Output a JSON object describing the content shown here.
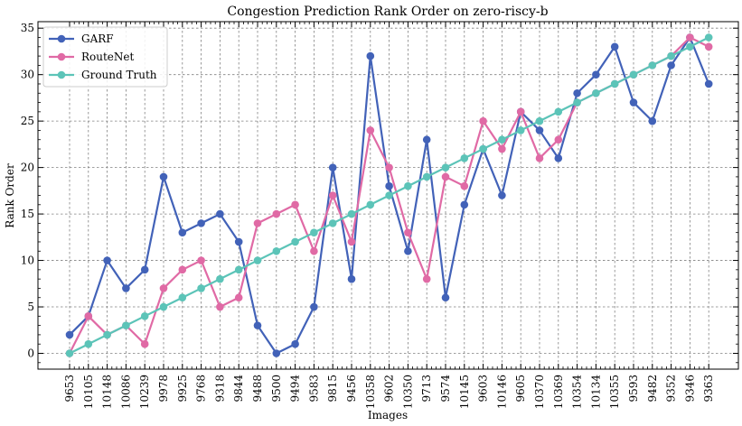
{
  "chart_data": {
    "type": "line",
    "title": "Congestion Prediction Rank Order on zero-riscy-b",
    "xlabel": "Images",
    "ylabel": "Rank Order",
    "ylim": [
      -1.7,
      35.7
    ],
    "yticks": [
      0,
      5,
      10,
      15,
      20,
      25,
      30,
      35
    ],
    "grid": true,
    "legend_position": "top-left",
    "categories": [
      "9653",
      "10105",
      "10148",
      "10086",
      "10239",
      "9978",
      "9925",
      "9768",
      "9318",
      "9844",
      "9488",
      "9500",
      "9494",
      "9583",
      "9815",
      "9456",
      "10358",
      "9602",
      "10350",
      "9713",
      "9574",
      "10145",
      "9603",
      "10146",
      "9605",
      "10370",
      "10369",
      "10354",
      "10134",
      "10355",
      "9593",
      "9482",
      "9352",
      "9346",
      "9363"
    ],
    "series": [
      {
        "name": "GARF",
        "color": "#4262b8",
        "values": [
          2,
          4,
          10,
          7,
          9,
          19,
          13,
          14,
          15,
          12,
          3,
          0,
          1,
          5,
          20,
          8,
          32,
          18,
          11,
          23,
          6,
          16,
          22,
          17,
          26,
          24,
          21,
          28,
          30,
          33,
          27,
          25,
          31,
          34,
          29
        ]
      },
      {
        "name": "RouteNet",
        "color": "#e06aa5",
        "values": [
          0,
          4,
          2,
          3,
          1,
          7,
          9,
          10,
          5,
          6,
          14,
          15,
          16,
          11,
          17,
          12,
          24,
          20,
          13,
          8,
          19,
          18,
          25,
          22,
          26,
          21,
          23,
          27,
          28,
          29,
          30,
          31,
          32,
          34,
          33
        ]
      },
      {
        "name": "Ground Truth",
        "color": "#5cc4b8",
        "values": [
          0,
          1,
          2,
          3,
          4,
          5,
          6,
          7,
          8,
          9,
          10,
          11,
          12,
          13,
          14,
          15,
          16,
          17,
          18,
          19,
          20,
          21,
          22,
          23,
          24,
          25,
          26,
          27,
          28,
          29,
          30,
          31,
          32,
          33,
          34
        ]
      }
    ]
  }
}
